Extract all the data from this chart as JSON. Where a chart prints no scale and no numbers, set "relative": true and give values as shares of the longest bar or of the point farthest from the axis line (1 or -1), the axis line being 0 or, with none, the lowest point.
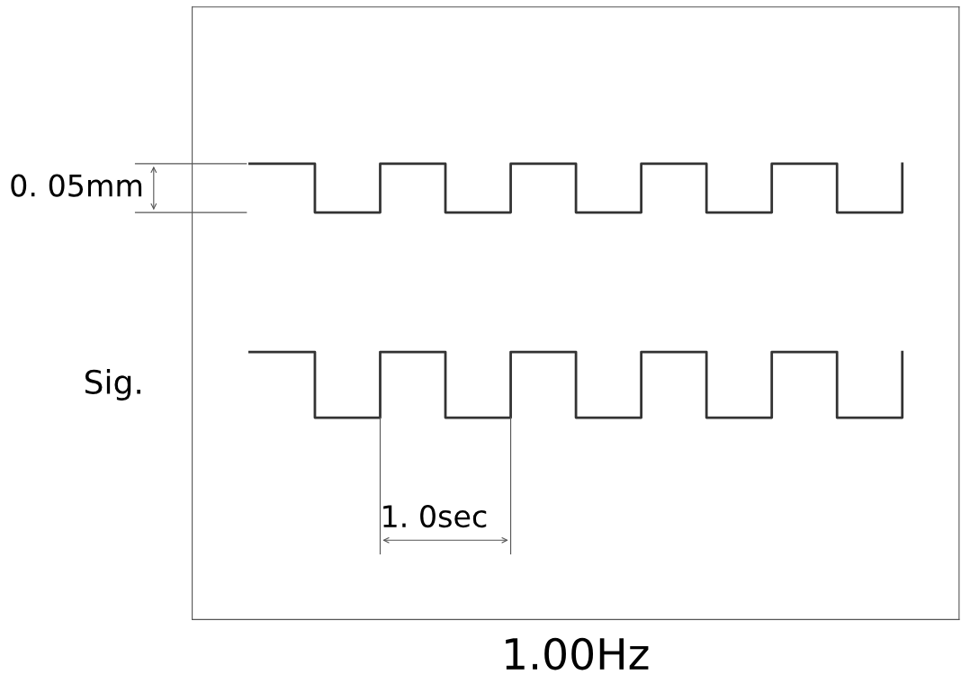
{
  "chart_data": {
    "type": "step",
    "relative": true,
    "xlabel": "1.00Hz",
    "legend": false,
    "marker": "none",
    "line_style": "solid",
    "categories": [
      null,
      null,
      null,
      null,
      null,
      null,
      null,
      null,
      null,
      null,
      null
    ],
    "series": [
      {
        "color": "#333333",
        "values": [
          1,
          0.893,
          1,
          0.893,
          1,
          0.893,
          1,
          0.893,
          1,
          0.893,
          1
        ]
      },
      {
        "color": "#333333",
        "values": [
          0.587,
          0.443,
          0.587,
          0.443,
          0.587,
          0.443,
          0.587,
          0.443,
          0.587,
          0.443,
          0.587
        ]
      }
    ],
    "annotations": [
      "0. 05mm",
      "Sig.",
      "1. 0sec"
    ]
  }
}
